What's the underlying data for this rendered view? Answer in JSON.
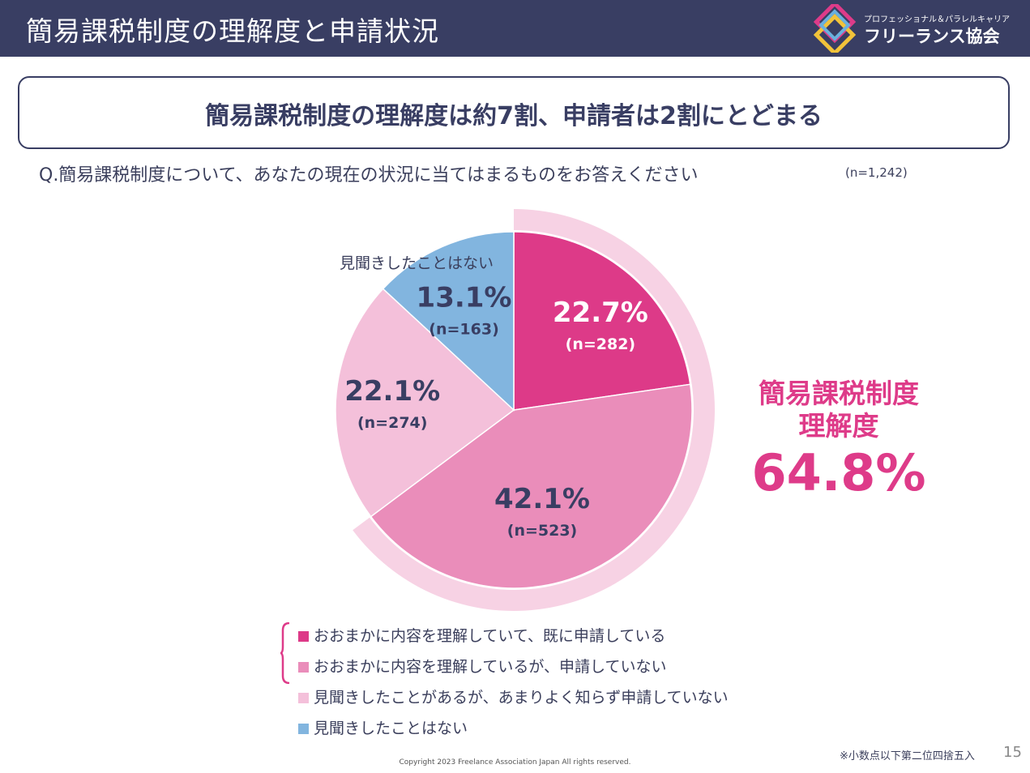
{
  "header": {
    "title": "簡易課税制度の理解度と申請状況"
  },
  "logo": {
    "small": "プロフェッショナル＆パラレルキャリア",
    "main": "フリーランス協会"
  },
  "headline": "簡易課税制度の理解度は約7割、申請者は2割にとどまる",
  "question": "Q.簡易課税制度について、あなたの現在の状況に当てはまるものをお答えください",
  "sample_size": "(n=1,242)",
  "chart_data": {
    "type": "pie",
    "slices": [
      {
        "label": "おおまかに内容を理解していて、既に申請している",
        "value": 22.7,
        "pct_label": "22.7%",
        "n_label": "(n=282)",
        "color": "#dd3a88"
      },
      {
        "label": "おおまかに内容を理解しているが、申請していない",
        "value": 42.1,
        "pct_label": "42.1%",
        "n_label": "(n=523)",
        "color": "#ea8dba"
      },
      {
        "label": "見聞きしたことがあるが、あまりよく知らず申請していない",
        "value": 22.1,
        "pct_label": "22.1%",
        "n_label": "(n=274)",
        "color": "#f4c0da"
      },
      {
        "label": "見聞きしたことはない",
        "value": 13.1,
        "pct_label": "13.1%",
        "n_label": "(n=163)",
        "color": "#82b5df"
      }
    ],
    "outer_label": "見聞きしたことはない",
    "ring_color": "#f7d2e4",
    "ring_covers": [
      "おおまかに内容を理解していて、既に申請している",
      "おおまかに内容を理解しているが、申請していない"
    ]
  },
  "callout": {
    "line1": "簡易課税制度",
    "line2": "理解度",
    "value": "64.8%",
    "color": "#de3b89"
  },
  "legend": [
    {
      "label": "おおまかに内容を理解していて、既に申請している",
      "color": "#dd3a88"
    },
    {
      "label": "おおまかに内容を理解しているが、申請していない",
      "color": "#ea8dba"
    },
    {
      "label": "見聞きしたことがあるが、あまりよく知らず申請していない",
      "color": "#f4c0da"
    },
    {
      "label": "見聞きしたことはない",
      "color": "#82b5df"
    }
  ],
  "footnote": "※小数点以下第二位四捨五入",
  "page_number": "15",
  "copyright": "Copyright 2023 Freelance Association Japan  All rights reserved."
}
